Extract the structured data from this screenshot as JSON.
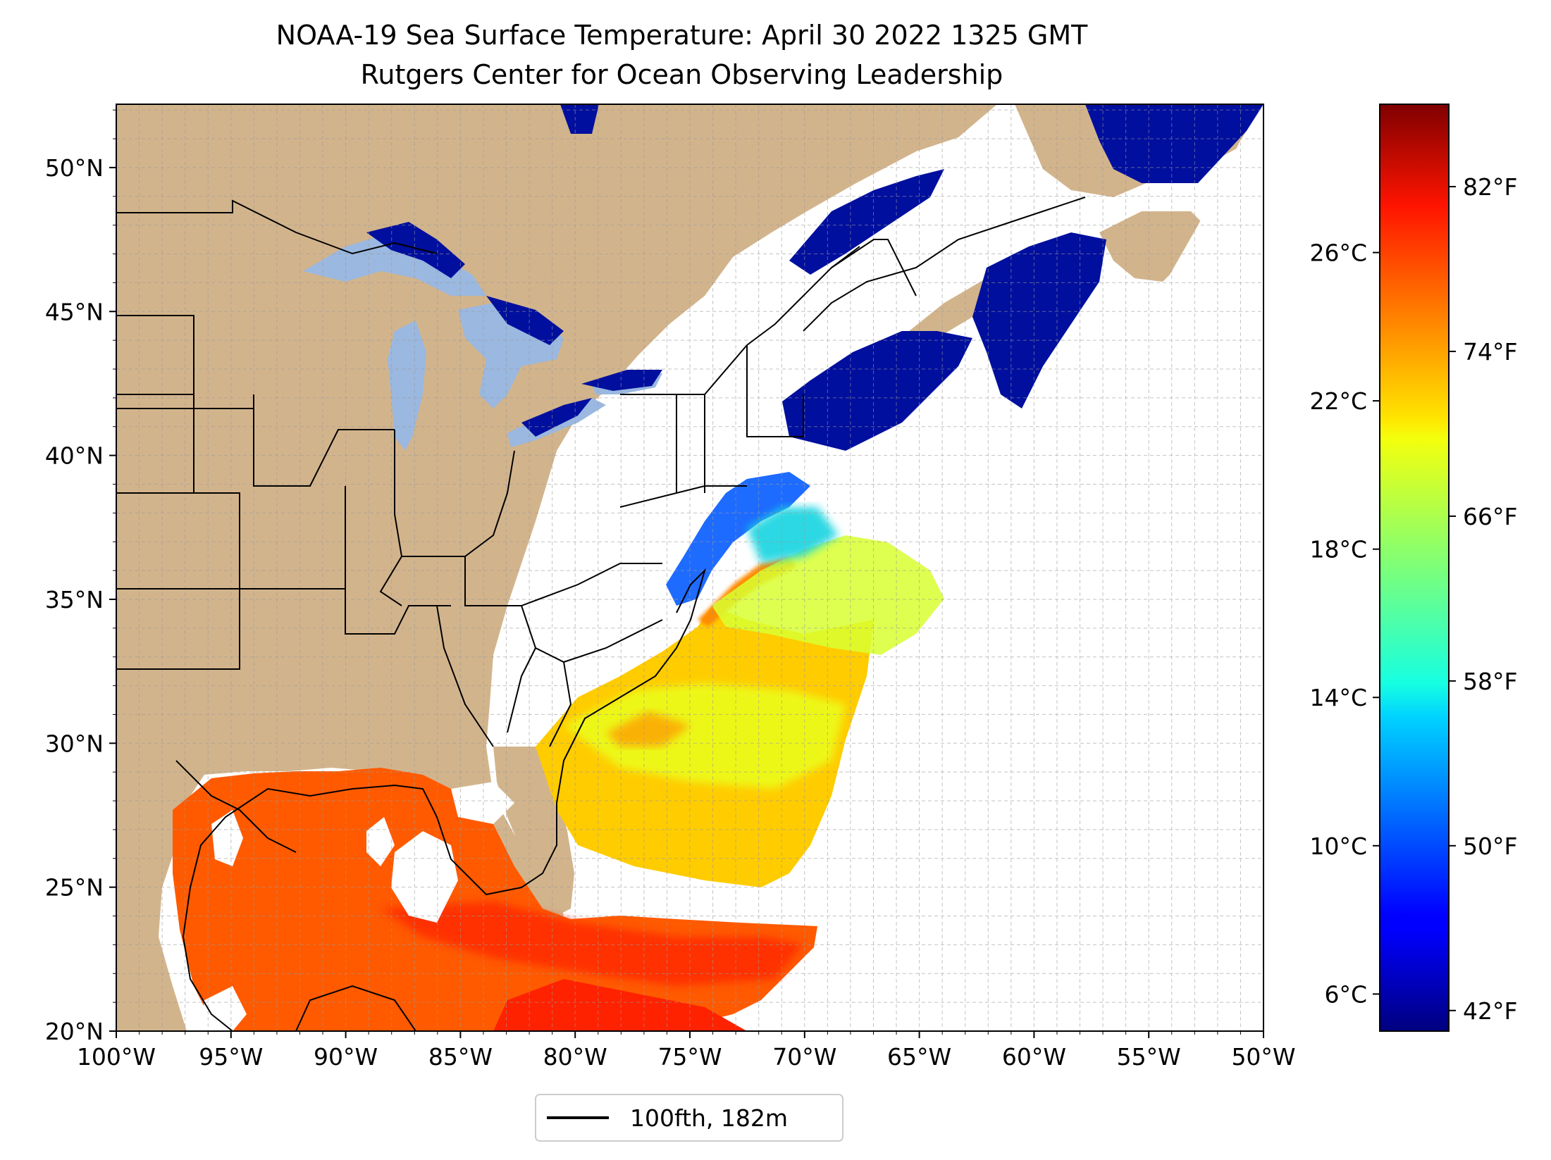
{
  "title": "NOAA-19 Sea Surface Temperature: April 30 2022 1325 GMT",
  "subtitle": "Rutgers Center for Ocean Observing Leadership",
  "map": {
    "lon_range": [
      -100,
      -50
    ],
    "lat_range": [
      20,
      52.2
    ],
    "lon_ticks": [
      {
        "value": -100,
        "label": "100°W"
      },
      {
        "value": -95,
        "label": "95°W"
      },
      {
        "value": -90,
        "label": "90°W"
      },
      {
        "value": -85,
        "label": "85°W"
      },
      {
        "value": -80,
        "label": "80°W"
      },
      {
        "value": -75,
        "label": "75°W"
      },
      {
        "value": -70,
        "label": "70°W"
      },
      {
        "value": -65,
        "label": "65°W"
      },
      {
        "value": -60,
        "label": "60°W"
      },
      {
        "value": -55,
        "label": "55°W"
      },
      {
        "value": -50,
        "label": "50°W"
      }
    ],
    "lat_ticks": [
      {
        "value": 20,
        "label": "20°N"
      },
      {
        "value": 25,
        "label": "25°N"
      },
      {
        "value": 30,
        "label": "30°N"
      },
      {
        "value": 35,
        "label": "35°N"
      },
      {
        "value": 40,
        "label": "40°N"
      },
      {
        "value": 45,
        "label": "45°N"
      },
      {
        "value": 50,
        "label": "50°N"
      }
    ],
    "gridlines": true,
    "land_color": "#d2b48c",
    "lake_color": "#9ab8e0",
    "no_data_color": "#ffffff"
  },
  "legend": {
    "entries": [
      {
        "label": "100fth, 182m",
        "color": "#000000"
      }
    ],
    "placement": "bottom-center"
  },
  "colorbar": {
    "colormap": "jet",
    "range_celsius": [
      5,
      30
    ],
    "celsius_ticks": [
      {
        "value": 6,
        "label": "6°C"
      },
      {
        "value": 10,
        "label": "10°C"
      },
      {
        "value": 14,
        "label": "14°C"
      },
      {
        "value": 18,
        "label": "18°C"
      },
      {
        "value": 22,
        "label": "22°C"
      },
      {
        "value": 26,
        "label": "26°C"
      }
    ],
    "fahrenheit_ticks": [
      {
        "value": 42,
        "label": "42°F"
      },
      {
        "value": 50,
        "label": "50°F"
      },
      {
        "value": 58,
        "label": "58°F"
      },
      {
        "value": 66,
        "label": "66°F"
      },
      {
        "value": 74,
        "label": "74°F"
      },
      {
        "value": 82,
        "label": "82°F"
      }
    ]
  }
}
